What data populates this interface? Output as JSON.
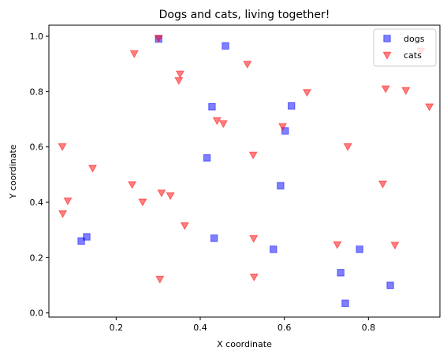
{
  "chart_data": {
    "type": "scatter",
    "title": "Dogs and cats, living together!",
    "xlabel": "X coordinate",
    "ylabel": "Y coordinate",
    "xlim": [
      0.04,
      0.97
    ],
    "ylim": [
      -0.015,
      1.04
    ],
    "xticks": [
      0.2,
      0.4,
      0.6,
      0.8
    ],
    "xtick_labels": [
      "0.2",
      "0.4",
      "0.6",
      "0.8"
    ],
    "yticks": [
      0.0,
      0.2,
      0.4,
      0.6,
      0.8,
      1.0
    ],
    "ytick_labels": [
      "0.0",
      "0.2",
      "0.4",
      "0.6",
      "0.8",
      "1.0"
    ],
    "grid": false,
    "legend_position": "top-right",
    "series": [
      {
        "name": "dogs",
        "marker": "square",
        "color": "#0000ff",
        "points": [
          [
            0.301,
            0.99
          ],
          [
            0.46,
            0.965
          ],
          [
            0.428,
            0.745
          ],
          [
            0.617,
            0.748
          ],
          [
            0.602,
            0.658
          ],
          [
            0.416,
            0.56
          ],
          [
            0.591,
            0.46
          ],
          [
            0.117,
            0.26
          ],
          [
            0.13,
            0.275
          ],
          [
            0.433,
            0.27
          ],
          [
            0.574,
            0.23
          ],
          [
            0.779,
            0.23
          ],
          [
            0.734,
            0.145
          ],
          [
            0.852,
            0.1
          ],
          [
            0.745,
            0.035
          ]
        ]
      },
      {
        "name": "cats",
        "marker": "triangle-down",
        "color": "#ff0000",
        "points": [
          [
            0.301,
            0.993
          ],
          [
            0.243,
            0.937
          ],
          [
            0.512,
            0.899
          ],
          [
            0.925,
            0.947
          ],
          [
            0.352,
            0.864
          ],
          [
            0.349,
            0.84
          ],
          [
            0.654,
            0.797
          ],
          [
            0.841,
            0.81
          ],
          [
            0.889,
            0.804
          ],
          [
            0.945,
            0.745
          ],
          [
            0.44,
            0.695
          ],
          [
            0.455,
            0.684
          ],
          [
            0.596,
            0.674
          ],
          [
            0.072,
            0.601
          ],
          [
            0.751,
            0.601
          ],
          [
            0.526,
            0.571
          ],
          [
            0.144,
            0.523
          ],
          [
            0.238,
            0.464
          ],
          [
            0.834,
            0.466
          ],
          [
            0.308,
            0.434
          ],
          [
            0.329,
            0.424
          ],
          [
            0.085,
            0.405
          ],
          [
            0.263,
            0.401
          ],
          [
            0.073,
            0.359
          ],
          [
            0.363,
            0.316
          ],
          [
            0.527,
            0.269
          ],
          [
            0.726,
            0.247
          ],
          [
            0.863,
            0.245
          ],
          [
            0.304,
            0.122
          ],
          [
            0.528,
            0.13
          ]
        ]
      }
    ]
  }
}
